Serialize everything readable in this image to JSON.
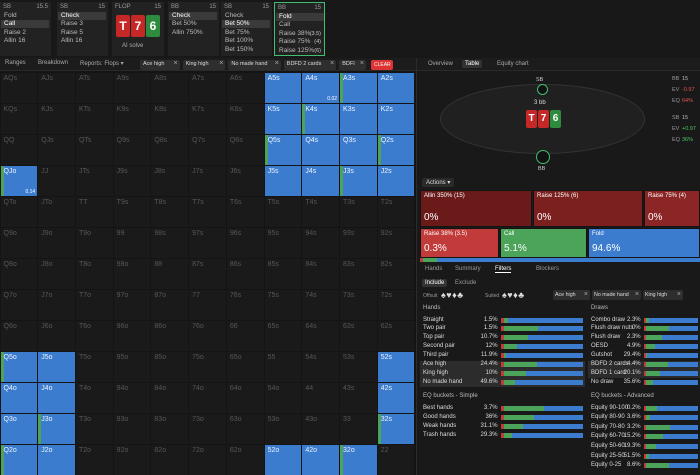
{
  "top": {
    "columns": [
      {
        "pos": "SB",
        "stack": "15.5",
        "actions": [
          "Fold",
          "Call",
          "Raise 2",
          "Allin 16"
        ],
        "selected": 1
      },
      {
        "pos": "SB",
        "stack": "15",
        "actions": [
          "Check",
          "Raise 3",
          "Raise 5",
          "Allin 16"
        ],
        "selected": 0
      },
      {
        "pos": "BB",
        "stack": "15",
        "actions": [
          "Check",
          "Bet 50%",
          "Allin 750%"
        ],
        "selected": 0
      },
      {
        "pos": "SB",
        "stack": "15",
        "actions": [
          "Check",
          "Bet 50%",
          "Bet 75%",
          "Bet 100%",
          "Bet 150%"
        ],
        "selected": 1
      },
      {
        "pos": "BB",
        "stack": "15",
        "actions": [
          "Fold",
          "Call",
          "Raise 38%",
          "Raise 75%",
          "Raise 125%"
        ],
        "selected": 0,
        "sizes": {
          "2": "(3.5)",
          "3": "(4)",
          "4": "(6)"
        }
      }
    ],
    "flop": {
      "label": "FLOP",
      "stack": "15",
      "cards": [
        "T",
        "7",
        "6"
      ],
      "colors": [
        "#c62828",
        "#c62828",
        "#2e8b3e"
      ],
      "solve": "AI solve"
    }
  },
  "toolbar": {
    "tabs": [
      "Ranges",
      "Breakdown",
      "Reports: Flops ▾"
    ],
    "chips": [
      "Ace high",
      "King high",
      "No made hand",
      "BDFD 2 cards",
      "BDFI"
    ],
    "close": "×",
    "clear": "CLEAR"
  },
  "grid": {
    "rows": [
      [
        "AQs",
        "AJs",
        "ATs",
        "A9s",
        "A8s",
        "A7s",
        "A6s",
        "A5s",
        "A4s",
        "A3s",
        "A2s"
      ],
      [
        "KQs",
        "KJs",
        "KTs",
        "K9s",
        "K8s",
        "K7s",
        "K6s",
        "K5s",
        "K4s",
        "K3s",
        "K2s"
      ],
      [
        "QQ",
        "QJs",
        "QTs",
        "Q9s",
        "Q8s",
        "Q7s",
        "Q6s",
        "Q5s",
        "Q4s",
        "Q3s",
        "Q2s"
      ],
      [
        "QJo",
        "JJ",
        "JTs",
        "J9s",
        "J8s",
        "J7s",
        "J6s",
        "J5s",
        "J4s",
        "J3s",
        "J2s"
      ],
      [
        "QTo",
        "JTo",
        "TT",
        "T9s",
        "T8s",
        "T7s",
        "T6s",
        "T5s",
        "T4s",
        "T3s",
        "T2s"
      ],
      [
        "Q9o",
        "J9o",
        "T9o",
        "99",
        "98s",
        "97s",
        "96s",
        "95s",
        "94s",
        "93s",
        "92s"
      ],
      [
        "Q8o",
        "J8o",
        "T8o",
        "98o",
        "88",
        "87s",
        "86s",
        "85s",
        "84s",
        "83s",
        "82s"
      ],
      [
        "Q7o",
        "J7o",
        "T7o",
        "97o",
        "87o",
        "77",
        "76s",
        "75s",
        "74s",
        "73s",
        "72s"
      ],
      [
        "Q6o",
        "J6o",
        "T6o",
        "96o",
        "86o",
        "76o",
        "66",
        "65s",
        "64s",
        "63s",
        "62s"
      ],
      [
        "Q5o",
        "J5o",
        "T5o",
        "95o",
        "85o",
        "75o",
        "65o",
        "55",
        "54s",
        "53s",
        "52s"
      ],
      [
        "Q4o",
        "J4o",
        "T4o",
        "94o",
        "84o",
        "74o",
        "64o",
        "54o",
        "44",
        "43s",
        "42s"
      ],
      [
        "Q3o",
        "J3o",
        "T3o",
        "93o",
        "83o",
        "73o",
        "63o",
        "53o",
        "43o",
        "33",
        "32s"
      ],
      [
        "Q2o",
        "J2o",
        "T2o",
        "92o",
        "82o",
        "72o",
        "62o",
        "52o",
        "42o",
        "32o",
        "22"
      ]
    ],
    "active": [
      "A5s",
      "A4s",
      "A3s",
      "A2s",
      "K5s",
      "K4s",
      "K3s",
      "K2s",
      "Q5s",
      "Q4s",
      "Q3s",
      "Q2s",
      "J5s",
      "J4s",
      "J3s",
      "J2s",
      "QJo",
      "Q5o",
      "J5o",
      "Q4o",
      "J4o",
      "Q3o",
      "J3o",
      "Q2o",
      "J2o",
      "52s",
      "42s",
      "32s",
      "52o",
      "42o",
      "32o"
    ],
    "notes": [
      {
        "hand": "A4s",
        "text": "0.02"
      },
      {
        "hand": "QJo",
        "text": "0.14"
      }
    ]
  },
  "right": {
    "tabs": [
      "Overview",
      "Table",
      "Equity chart"
    ],
    "selected": 1,
    "table": {
      "top_seat": "SB",
      "bottom_seat": "BB",
      "pot": "3 bb",
      "cards": [
        "T",
        "7",
        "6"
      ],
      "colors": [
        "#c62828",
        "#c62828",
        "#2e8b3e"
      ]
    },
    "stats": [
      [
        "BB",
        "15",
        "#bbb"
      ],
      [
        "EV",
        "-0.97",
        "#e05555"
      ],
      [
        "EQ",
        "64%",
        "#e05555"
      ],
      [
        "SB",
        "15",
        "#bbb"
      ],
      [
        "EV",
        "+0.97",
        "#4cc46a"
      ],
      [
        "EQ",
        "36%",
        "#4cc46a"
      ]
    ]
  },
  "actions": {
    "title": "Actions ▾",
    "items": [
      {
        "name": "Allin 350% (15)",
        "pct": "0%",
        "color": "#6b1a1a"
      },
      {
        "name": "Raise 125% (6)",
        "pct": "0%",
        "color": "#7c1f1f"
      },
      {
        "name": "Raise 75% (4)",
        "pct": "0%",
        "color": "#8c2626"
      },
      {
        "name": "Raise 38% (3.5)",
        "pct": "0.3%",
        "color": "#c23b3b"
      },
      {
        "name": "Call",
        "pct": "5.1%",
        "color": "#4ca35a"
      },
      {
        "name": "Fold",
        "pct": "94.6%",
        "color": "#3b7ccf"
      }
    ]
  },
  "subtabs": {
    "items": [
      "Hands",
      "Summary",
      "Filters",
      "Blockers"
    ],
    "selected": 2
  },
  "filters": {
    "modes": [
      "Include",
      "Exclude"
    ],
    "offsuit": "Offsuit",
    "suited": "Suited",
    "suits": "♠♥♦♣",
    "chips": [
      "Ace high",
      "No made hand",
      "King high"
    ],
    "close": "×"
  },
  "hands": {
    "title": "Hands",
    "highlight": [
      5,
      6,
      7
    ],
    "rows": [
      [
        "Straight",
        "1.5%"
      ],
      [
        "Two pair",
        "1.5%"
      ],
      [
        "Top pair",
        "10.7%"
      ],
      [
        "Second pair",
        "12%"
      ],
      [
        "Third pair",
        "11.9%"
      ],
      [
        "Ace high",
        "24.4%"
      ],
      [
        "King high",
        "10%"
      ],
      [
        "No made hand",
        "49.6%"
      ]
    ]
  },
  "draws": {
    "title": "Draws",
    "highlight": [
      5,
      6
    ],
    "rows": [
      [
        "Combo draw",
        "2.3%"
      ],
      [
        "Flush draw nuts",
        "0%"
      ],
      [
        "Flush draw",
        "2.3%"
      ],
      [
        "OESD",
        "4.9%"
      ],
      [
        "Gutshot",
        "29.4%"
      ],
      [
        "BDFD 2 cards",
        "4.4%"
      ],
      [
        "BDFD 1 card",
        "20.1%"
      ],
      [
        "No draw",
        "35.6%"
      ]
    ]
  },
  "eq_simple": {
    "title": "EQ buckets - Simple",
    "highlight": [],
    "rows": [
      [
        "Best hands",
        "3.7%"
      ],
      [
        "Good hands",
        "36%"
      ],
      [
        "Weak hands",
        "31.1%"
      ],
      [
        "Trash hands",
        "29.3%"
      ]
    ]
  },
  "eq_advanced": {
    "title": "EQ buckets - Advanced",
    "highlight": [],
    "rows": [
      [
        "Equity 90-100",
        "0.2%"
      ],
      [
        "Equity 80-90",
        "3.6%"
      ],
      [
        "Equity 70-80",
        "3.2%"
      ],
      [
        "Equity 60-70",
        "15.2%"
      ],
      [
        "Equity 50-60",
        "19.3%"
      ],
      [
        "Equity 25-50",
        "51.5%"
      ],
      [
        "Equity 0-25",
        "8.6%"
      ]
    ]
  }
}
